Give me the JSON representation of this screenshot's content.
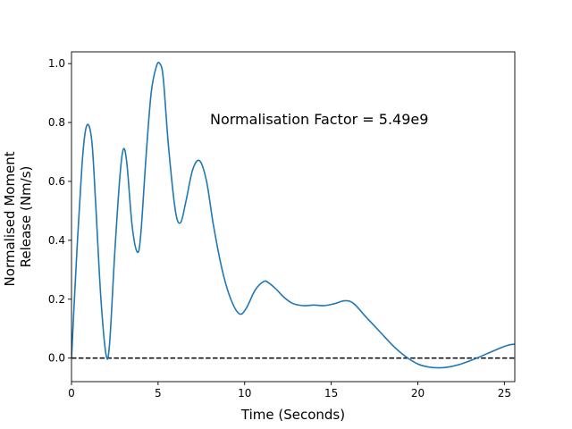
{
  "chart_data": {
    "type": "line",
    "xlabel": "Time (Seconds)",
    "ylabel": [
      "Normalised Moment",
      "Release (Nm/s)"
    ],
    "xlim": [
      0,
      25.6
    ],
    "ylim": [
      -0.08,
      1.04
    ],
    "xticks": [
      0,
      5,
      10,
      15,
      20,
      25
    ],
    "yticks": [
      0.0,
      0.2,
      0.4,
      0.6,
      0.8,
      1.0
    ],
    "annotation": {
      "text": "Normalisation Factor = 5.49e9",
      "x": 8.0,
      "y": 0.81
    },
    "reference_line": {
      "y": 0.0,
      "style": "dashed",
      "color": "#000000"
    },
    "series": [
      {
        "color": "#1f77b4",
        "x": [
          0,
          0.3,
          0.6,
          0.8,
          1.0,
          1.2,
          1.4,
          1.7,
          2.0,
          2.2,
          2.5,
          2.8,
          3.0,
          3.2,
          3.5,
          3.8,
          4.0,
          4.3,
          4.6,
          4.9,
          5.1,
          5.3,
          5.6,
          6.0,
          6.3,
          6.6,
          7.0,
          7.4,
          7.8,
          8.2,
          8.7,
          9.2,
          9.7,
          10.1,
          10.6,
          11.1,
          11.4,
          11.8,
          12.3,
          12.8,
          13.4,
          14.0,
          14.6,
          15.2,
          15.8,
          16.3,
          17.0,
          17.8,
          18.6,
          19.3,
          20.0,
          20.6,
          21.2,
          21.8,
          22.5,
          23.2,
          24.0,
          24.8,
          25.3,
          25.6
        ],
        "y": [
          0.0,
          0.35,
          0.65,
          0.77,
          0.79,
          0.72,
          0.52,
          0.2,
          0.01,
          0.05,
          0.36,
          0.62,
          0.71,
          0.66,
          0.45,
          0.36,
          0.42,
          0.68,
          0.9,
          0.99,
          1.0,
          0.95,
          0.72,
          0.5,
          0.46,
          0.53,
          0.64,
          0.67,
          0.6,
          0.45,
          0.3,
          0.2,
          0.15,
          0.17,
          0.23,
          0.26,
          0.255,
          0.235,
          0.205,
          0.185,
          0.178,
          0.18,
          0.178,
          0.185,
          0.195,
          0.185,
          0.14,
          0.09,
          0.04,
          0.005,
          -0.02,
          -0.03,
          -0.033,
          -0.03,
          -0.02,
          -0.005,
          0.015,
          0.035,
          0.045,
          0.047
        ]
      }
    ]
  }
}
